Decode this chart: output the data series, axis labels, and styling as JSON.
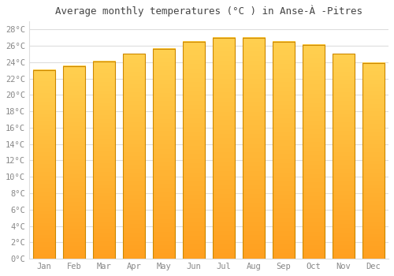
{
  "title": "Average monthly temperatures (°C ) in Anse-À -Pitres",
  "months": [
    "Jan",
    "Feb",
    "Mar",
    "Apr",
    "May",
    "Jun",
    "Jul",
    "Aug",
    "Sep",
    "Oct",
    "Nov",
    "Dec"
  ],
  "temperatures": [
    23.0,
    23.5,
    24.1,
    25.0,
    25.6,
    26.5,
    27.0,
    27.0,
    26.5,
    26.1,
    25.0,
    23.9
  ],
  "bar_color_top": "#FFD050",
  "bar_color_bottom": "#FFA020",
  "bar_edge_color": "#CC8800",
  "background_color": "#ffffff",
  "grid_color": "#dddddd",
  "text_color": "#888888",
  "title_color": "#444444",
  "ylim": [
    0,
    29
  ],
  "yticks": [
    0,
    2,
    4,
    6,
    8,
    10,
    12,
    14,
    16,
    18,
    20,
    22,
    24,
    26,
    28
  ],
  "ytick_labels": [
    "0°C",
    "2°C",
    "4°C",
    "6°C",
    "8°C",
    "10°C",
    "12°C",
    "14°C",
    "16°C",
    "18°C",
    "20°C",
    "22°C",
    "24°C",
    "26°C",
    "28°C"
  ],
  "title_fontsize": 9,
  "tick_fontsize": 7.5,
  "figsize": [
    5.0,
    3.5
  ],
  "dpi": 100
}
